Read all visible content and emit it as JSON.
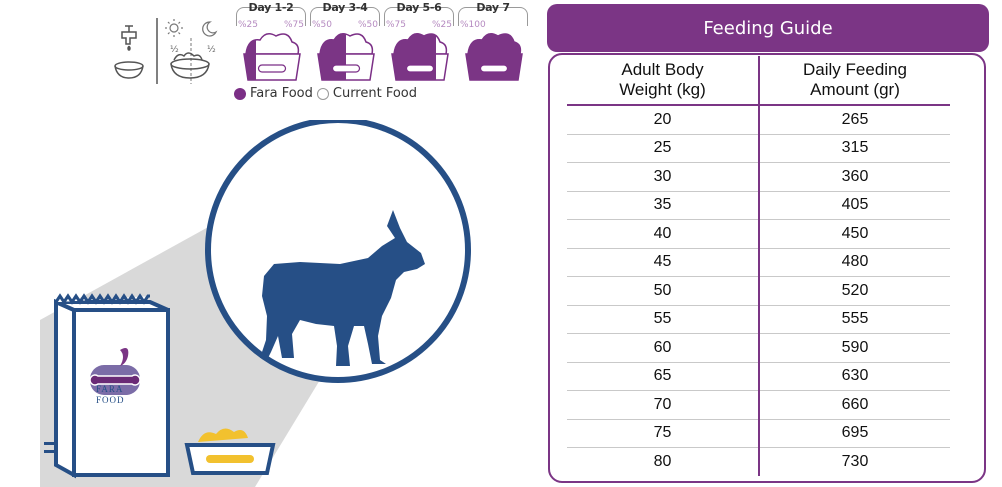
{
  "transition": {
    "days": [
      {
        "label": "Day 1-2",
        "pct_fara": "%25",
        "pct_current": "%75",
        "fara_fraction": 0.25
      },
      {
        "label": "Day 3-4",
        "pct_fara": "%50",
        "pct_current": "%50",
        "fara_fraction": 0.5
      },
      {
        "label": "Day 5-6",
        "pct_fara": "%75",
        "pct_current": "%25",
        "fara_fraction": 0.75
      },
      {
        "label": "Day 7",
        "pct_fara": "%100",
        "pct_current": "",
        "fara_fraction": 1.0
      }
    ],
    "half_left": "½",
    "half_right": "½",
    "legend": {
      "fara": "Fara Food",
      "current": "Current Food"
    }
  },
  "bag": {
    "brand_line1": "FARA",
    "brand_line2": "FOOD"
  },
  "guide": {
    "title": "Feeding Guide",
    "col1_line1": "Adult Body",
    "col1_line2": "Weight (kg)",
    "col2_line1": "Daily Feeding",
    "col2_line2": "Amount (gr)",
    "rows": [
      {
        "weight": "20",
        "amount": "265"
      },
      {
        "weight": "25",
        "amount": "315"
      },
      {
        "weight": "30",
        "amount": "360"
      },
      {
        "weight": "35",
        "amount": "405"
      },
      {
        "weight": "40",
        "amount": "450"
      },
      {
        "weight": "45",
        "amount": "480"
      },
      {
        "weight": "50",
        "amount": "520"
      },
      {
        "weight": "55",
        "amount": "555"
      },
      {
        "weight": "60",
        "amount": "590"
      },
      {
        "weight": "65",
        "amount": "630"
      },
      {
        "weight": "70",
        "amount": "660"
      },
      {
        "weight": "75",
        "amount": "695"
      },
      {
        "weight": "80",
        "amount": "730"
      }
    ]
  },
  "colors": {
    "brand_purple": "#7b3585",
    "dog_blue": "#264f86",
    "shadow_gray": "#d9d9d9",
    "kibble_yellow": "#f2c12e"
  }
}
